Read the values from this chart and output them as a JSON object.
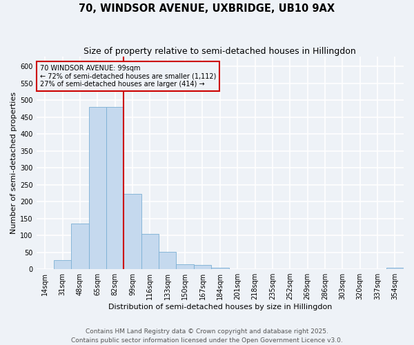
{
  "title": "70, WINDSOR AVENUE, UXBRIDGE, UB10 9AX",
  "subtitle": "Size of property relative to semi-detached houses in Hillingdon",
  "xlabel": "Distribution of semi-detached houses by size in Hillingdon",
  "ylabel": "Number of semi-detached properties",
  "categories": [
    "14sqm",
    "31sqm",
    "48sqm",
    "65sqm",
    "82sqm",
    "99sqm",
    "116sqm",
    "133sqm",
    "150sqm",
    "167sqm",
    "184sqm",
    "201sqm",
    "218sqm",
    "235sqm",
    "252sqm",
    "269sqm",
    "286sqm",
    "303sqm",
    "320sqm",
    "337sqm",
    "354sqm"
  ],
  "values": [
    0,
    27,
    135,
    480,
    480,
    222,
    105,
    51,
    14,
    12,
    5,
    1,
    1,
    1,
    0,
    1,
    0,
    0,
    0,
    0,
    4
  ],
  "bar_color": "#c5d9ee",
  "bar_edge_color": "#7aafd4",
  "vline_x": 4.5,
  "vline_color": "#cc0000",
  "annotation_text": "70 WINDSOR AVENUE: 99sqm\n← 72% of semi-detached houses are smaller (1,112)\n27% of semi-detached houses are larger (414) →",
  "annotation_box_color": "#cc0000",
  "ylim": [
    0,
    630
  ],
  "yticks": [
    0,
    50,
    100,
    150,
    200,
    250,
    300,
    350,
    400,
    450,
    500,
    550,
    600
  ],
  "footer": "Contains HM Land Registry data © Crown copyright and database right 2025.\nContains public sector information licensed under the Open Government Licence v3.0.",
  "bg_color": "#eef2f7",
  "grid_color": "#ffffff",
  "title_fontsize": 10.5,
  "subtitle_fontsize": 9,
  "axis_label_fontsize": 8,
  "tick_fontsize": 7,
  "annotation_fontsize": 7,
  "footer_fontsize": 6.5
}
